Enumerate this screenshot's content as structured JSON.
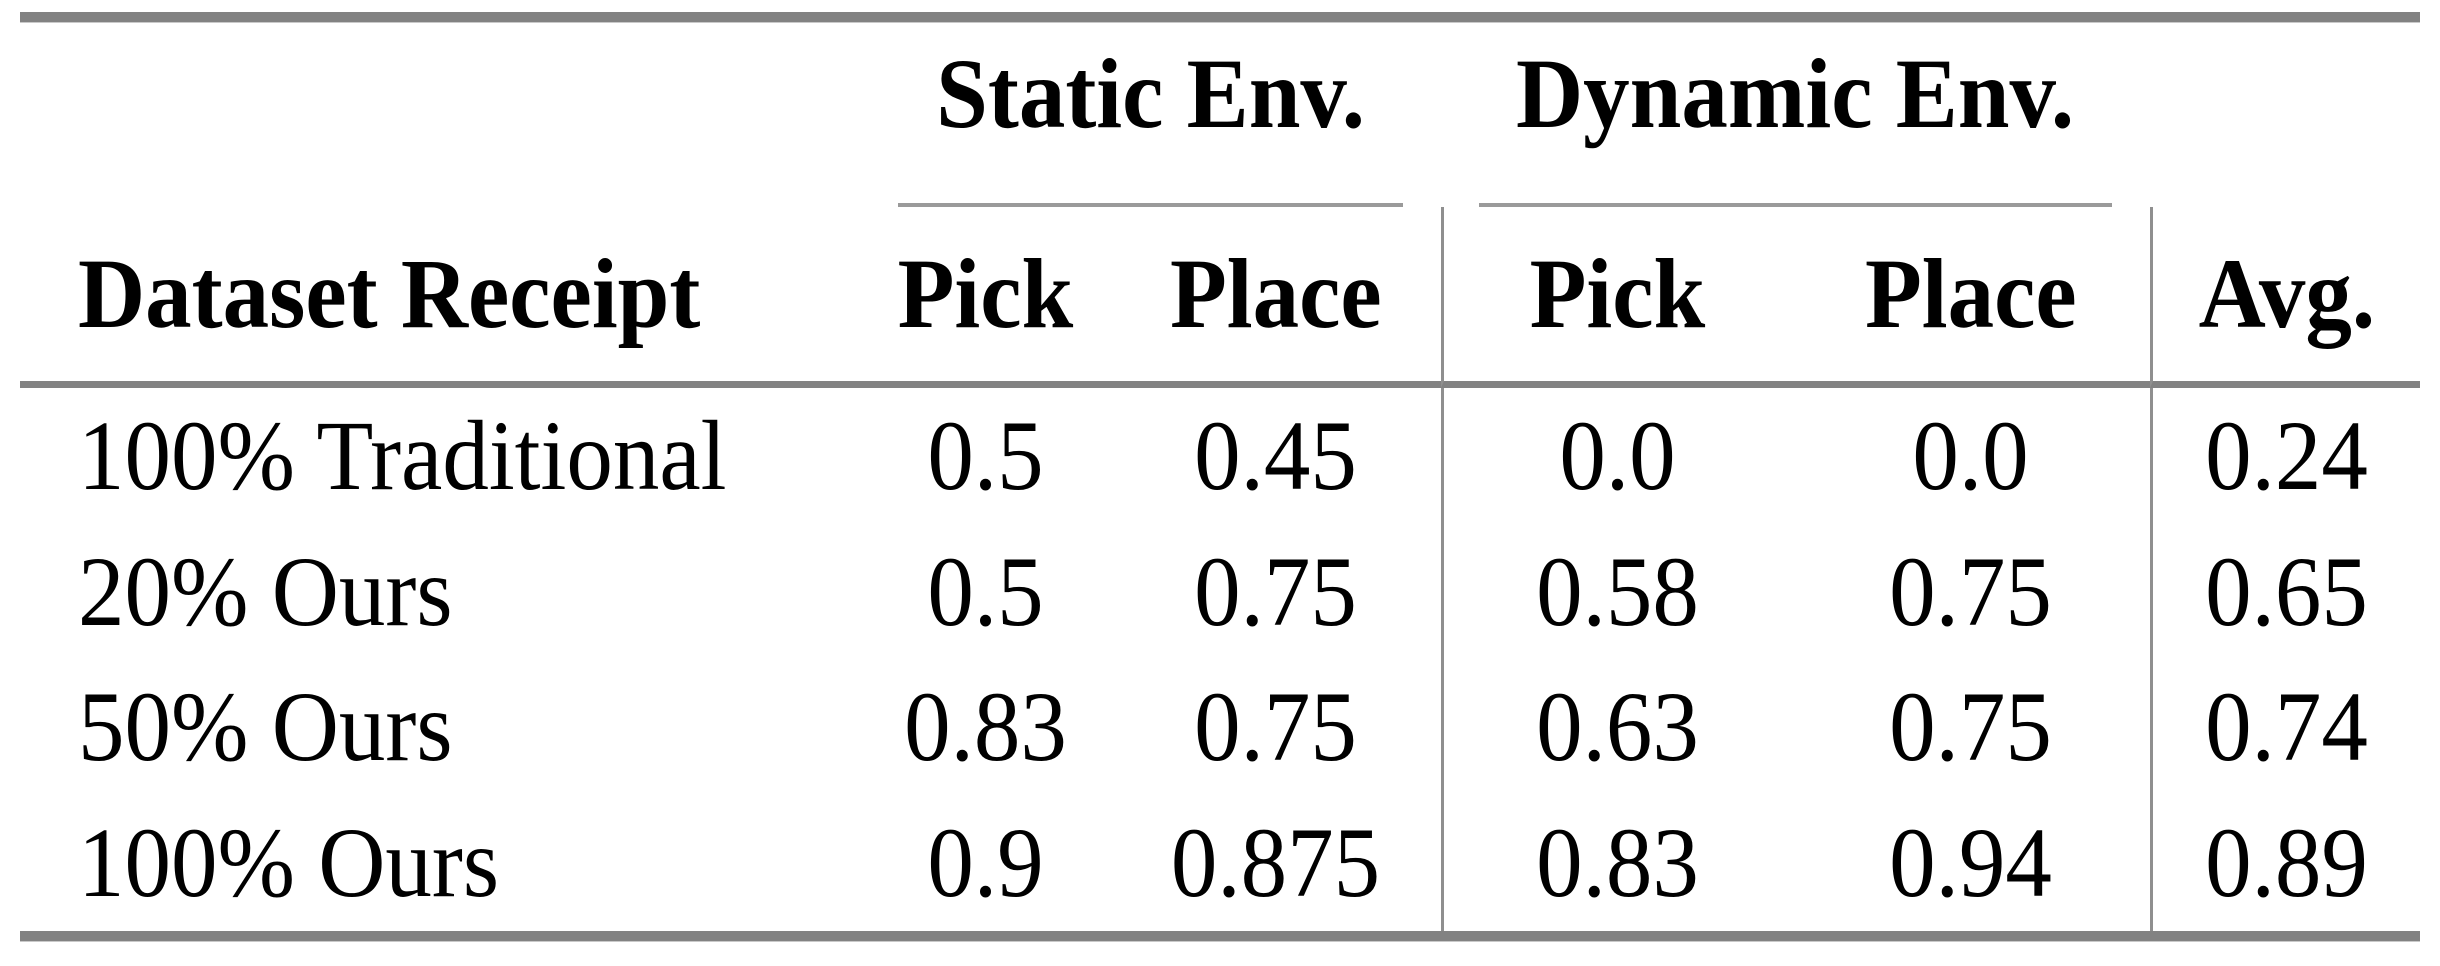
{
  "table": {
    "col_groups": {
      "static": "Static Env.",
      "dynamic": "Dynamic Env."
    },
    "headers": {
      "dataset": "Dataset Receipt",
      "static_pick": "Pick",
      "static_place": "Place",
      "dynamic_pick": "Pick",
      "dynamic_place": "Place",
      "avg": "Avg."
    },
    "rows": [
      {
        "dataset": "100% Traditional",
        "static_pick": "0.5",
        "static_place": "0.45",
        "dynamic_pick": "0.0",
        "dynamic_place": "0.0",
        "avg": "0.24"
      },
      {
        "dataset": "20% Ours",
        "static_pick": "0.5",
        "static_place": "0.75",
        "dynamic_pick": "0.58",
        "dynamic_place": "0.75",
        "avg": "0.65"
      },
      {
        "dataset": "50% Ours",
        "static_pick": "0.83",
        "static_place": "0.75",
        "dynamic_pick": "0.63",
        "dynamic_place": "0.75",
        "avg": "0.74"
      },
      {
        "dataset": "100% Ours",
        "static_pick": "0.9",
        "static_place": "0.875",
        "dynamic_pick": "0.83",
        "dynamic_place": "0.94",
        "avg": "0.89"
      }
    ]
  },
  "colors": {
    "thick_rule": "#828282",
    "mid_rule": "#828282",
    "cmid_rule": "#9a9a9a",
    "vertical_rule": "#8f8f8f",
    "text": "#000000",
    "background": "#ffffff"
  },
  "chart_data": {
    "type": "table",
    "columns": [
      "Dataset Receipt",
      "Static Env. Pick",
      "Static Env. Place",
      "Dynamic Env. Pick",
      "Dynamic Env. Place",
      "Avg."
    ],
    "rows": [
      [
        "100% Traditional",
        0.5,
        0.45,
        0.0,
        0.0,
        0.24
      ],
      [
        "20% Ours",
        0.5,
        0.75,
        0.58,
        0.75,
        0.65
      ],
      [
        "50% Ours",
        0.83,
        0.75,
        0.63,
        0.75,
        0.74
      ],
      [
        "100% Ours",
        0.9,
        0.875,
        0.83,
        0.94,
        0.89
      ]
    ]
  }
}
